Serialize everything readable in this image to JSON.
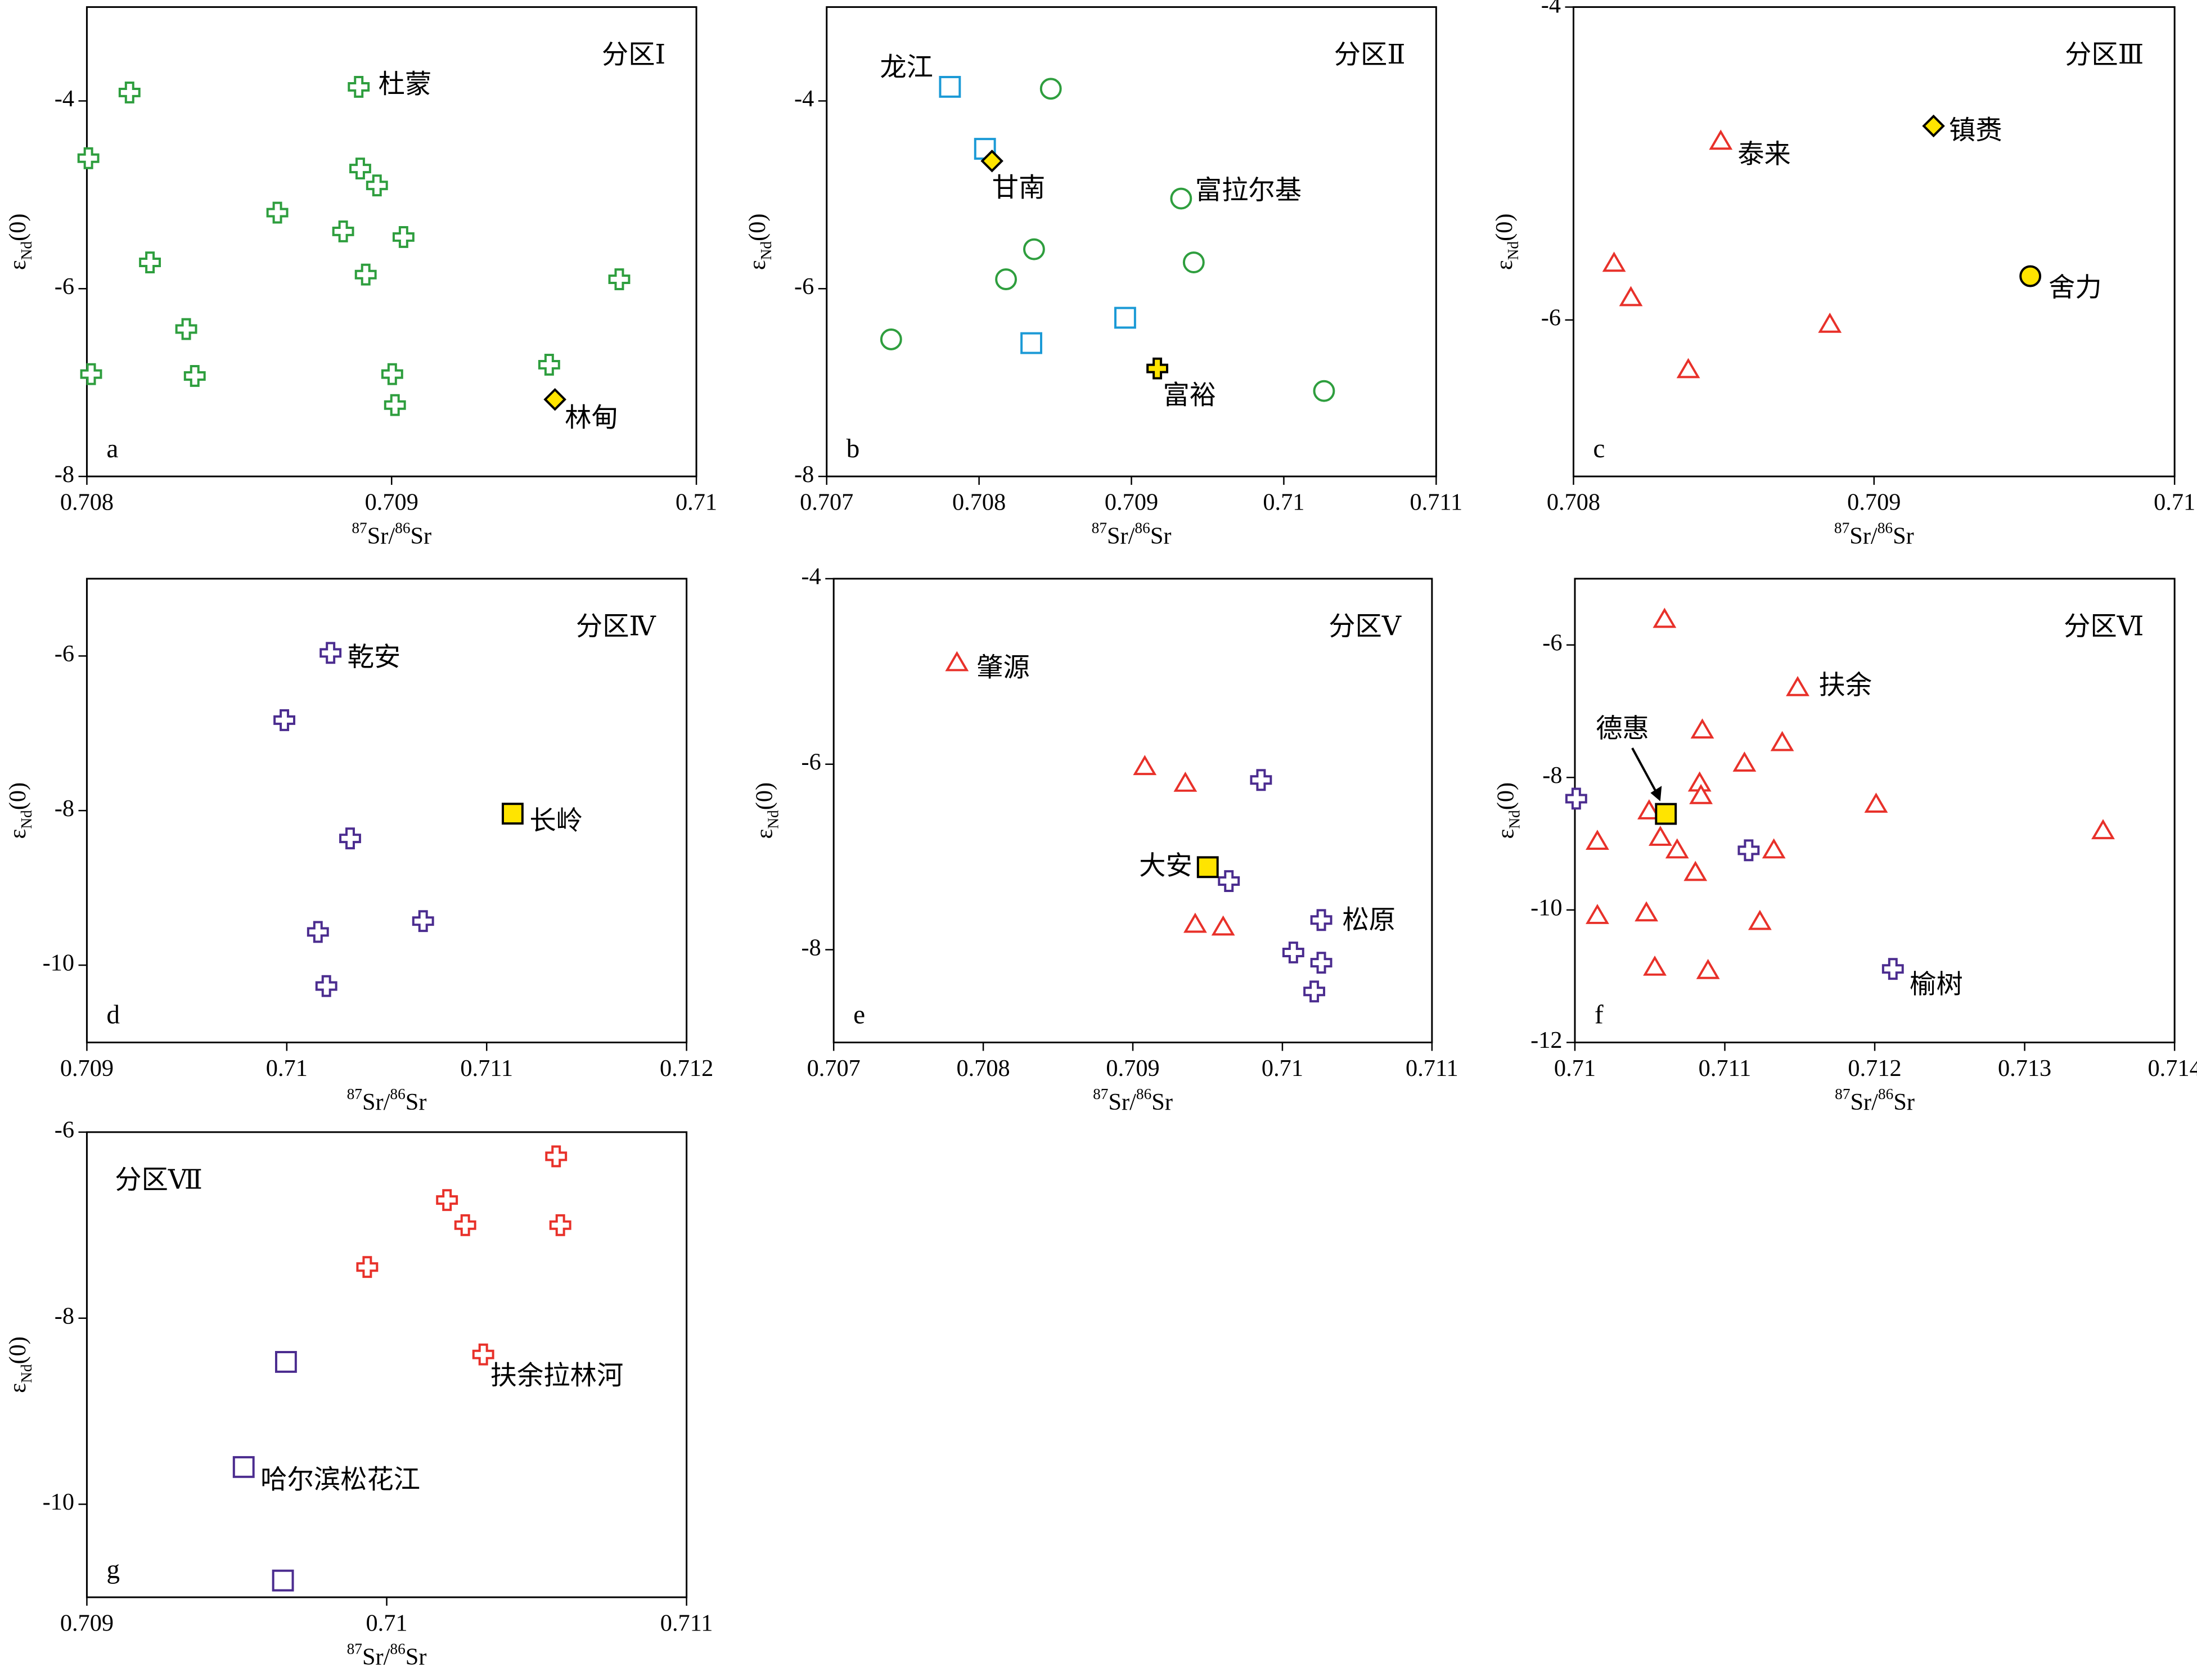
{
  "chart_data": [
    {
      "type": "scatter",
      "title": "分区Ⅰ",
      "panel_label": "a",
      "xlabel": [
        "87",
        "Sr/",
        "86",
        "Sr"
      ],
      "ylabel": [
        "ε",
        "Nd",
        "(0)"
      ],
      "xlim": [
        0.708,
        0.71
      ],
      "xticks": [
        0.708,
        0.709,
        0.71
      ],
      "ylim": [
        -8,
        -3
      ],
      "yticks": [
        -8,
        -6,
        -4
      ],
      "series": [
        {
          "marker": "cross",
          "color": "#2e9e3e",
          "fill": "#ffffff",
          "x": [
            0.70814,
            0.708005,
            0.708625,
            0.708207,
            0.708841,
            0.708897,
            0.708952,
            0.709039,
            0.708915,
            0.708326,
            0.708014,
            0.708354,
            0.709002,
            0.709011,
            0.709517,
            0.709747
          ],
          "y": [
            -3.91,
            -4.61,
            -5.19,
            -5.72,
            -5.39,
            -4.72,
            -4.9,
            -5.45,
            -5.85,
            -6.43,
            -6.91,
            -6.93,
            -6.91,
            -7.24,
            -6.81,
            -5.9
          ]
        },
        {
          "marker": "cross",
          "color": "#2e9e3e",
          "fill": "#ffffff",
          "label": "杜蒙",
          "x": [
            0.708892
          ],
          "y": [
            -3.85
          ]
        },
        {
          "marker": "diamond",
          "color": "#000000",
          "fill": "#ffe400",
          "label": "林甸",
          "x": [
            0.709536
          ],
          "y": [
            -7.18
          ]
        }
      ]
    },
    {
      "type": "scatter",
      "title": "分区Ⅱ",
      "panel_label": "b",
      "xlabel": [
        "87",
        "Sr/",
        "86",
        "Sr"
      ],
      "ylabel": [
        "ε",
        "Nd",
        "(0)"
      ],
      "xlim": [
        0.707,
        0.711
      ],
      "xticks": [
        0.707,
        0.708,
        0.709,
        0.71,
        0.711
      ],
      "ylim": [
        -8,
        -3
      ],
      "yticks": [
        -8,
        -6,
        -4
      ],
      "series": [
        {
          "marker": "square",
          "color": "#1b9ad6",
          "fill": "#ffffff",
          "x": [
            0.708039,
            0.708343,
            0.708959
          ],
          "y": [
            -4.51,
            -6.58,
            -6.31
          ]
        },
        {
          "marker": "square",
          "color": "#1b9ad6",
          "fill": "#ffffff",
          "label": "龙江",
          "x": [
            0.707809
          ],
          "y": [
            -3.85
          ]
        },
        {
          "marker": "circle",
          "color": "#2e9e3e",
          "fill": "#ffffff",
          "x": [
            0.708471,
            0.708361,
            0.708177,
            0.709409,
            0.707423,
            0.710264
          ],
          "y": [
            -3.87,
            -5.58,
            -5.9,
            -5.72,
            -6.54,
            -7.09
          ]
        },
        {
          "marker": "circle",
          "color": "#2e9e3e",
          "fill": "#ffffff",
          "label": "富拉尔基",
          "x": [
            0.709326
          ],
          "y": [
            -5.04
          ]
        },
        {
          "marker": "diamond",
          "color": "#000000",
          "fill": "#ffe400",
          "label": "甘南",
          "x": [
            0.708085
          ],
          "y": [
            -4.64
          ]
        },
        {
          "marker": "cross",
          "color": "#000000",
          "fill": "#ffe400",
          "label": "富裕",
          "x": [
            0.70917
          ],
          "y": [
            -6.85
          ]
        }
      ]
    },
    {
      "type": "scatter",
      "title": "分区Ⅲ",
      "panel_label": "c",
      "xlabel": [
        "87",
        "Sr/",
        "86",
        "Sr"
      ],
      "ylabel": [
        "ε",
        "Nd",
        "(0)"
      ],
      "xlim": [
        0.708,
        0.71
      ],
      "xticks": [
        0.708,
        0.709,
        0.71
      ],
      "ylim": [
        -7,
        -4
      ],
      "yticks": [
        -6,
        -4
      ],
      "series": [
        {
          "marker": "triangle",
          "color": "#e8312a",
          "fill": "#ffffff",
          "x": [
            0.708135,
            0.708191,
            0.708382,
            0.708853
          ],
          "y": [
            -5.64,
            -5.86,
            -6.32,
            -6.03
          ]
        },
        {
          "marker": "triangle",
          "color": "#e8312a",
          "fill": "#ffffff",
          "label": "泰来",
          "x": [
            0.70849
          ],
          "y": [
            -4.86
          ]
        },
        {
          "marker": "diamond",
          "color": "#000000",
          "fill": "#ffe400",
          "label": "镇赉",
          "x": [
            0.709198
          ],
          "y": [
            -4.76
          ]
        },
        {
          "marker": "circle",
          "color": "#000000",
          "fill": "#ffe400",
          "label": "舍力",
          "x": [
            0.70952
          ],
          "y": [
            -5.72
          ]
        }
      ]
    },
    {
      "type": "scatter",
      "title": "分区Ⅳ",
      "panel_label": "d",
      "xlabel": [
        "87",
        "Sr/",
        "86",
        "Sr"
      ],
      "ylabel": [
        "ε",
        "Nd",
        "(0)"
      ],
      "xlim": [
        0.709,
        0.712
      ],
      "xticks": [
        0.709,
        0.71,
        0.711,
        0.712
      ],
      "ylim": [
        -11,
        -5
      ],
      "yticks": [
        -10,
        -8,
        -6
      ],
      "series": [
        {
          "marker": "cross",
          "color": "#4b2c8f",
          "fill": "#ffffff",
          "x": [
            0.709988,
            0.710317,
            0.710156,
            0.710682,
            0.710198
          ],
          "y": [
            -6.83,
            -8.36,
            -9.57,
            -9.43,
            -10.27
          ]
        },
        {
          "marker": "cross",
          "color": "#4b2c8f",
          "fill": "#ffffff",
          "label": "乾安",
          "x": [
            0.710219
          ],
          "y": [
            -5.96
          ]
        },
        {
          "marker": "square",
          "color": "#000000",
          "fill": "#ffe400",
          "label": "长岭",
          "x": [
            0.71113
          ],
          "y": [
            -8.04
          ]
        }
      ]
    },
    {
      "type": "scatter",
      "title": "分区Ⅴ",
      "panel_label": "e",
      "xlabel": [
        "87",
        "Sr/",
        "86",
        "Sr"
      ],
      "ylabel": [
        "ε",
        "Nd",
        "(0)"
      ],
      "xlim": [
        0.707,
        0.711
      ],
      "xticks": [
        0.707,
        0.708,
        0.709,
        0.71,
        0.711
      ],
      "ylim": [
        -9,
        -4
      ],
      "yticks": [
        -8,
        -6,
        -4
      ],
      "series": [
        {
          "marker": "triangle",
          "color": "#e8312a",
          "fill": "#ffffff",
          "x": [
            0.70908,
            0.709351,
            0.709417,
            0.709604
          ],
          "y": [
            -6.03,
            -6.21,
            -7.73,
            -7.76
          ]
        },
        {
          "marker": "triangle",
          "color": "#e8312a",
          "fill": "#ffffff",
          "label": "肇源",
          "x": [
            0.707824
          ],
          "y": [
            -4.91
          ]
        },
        {
          "marker": "cross",
          "color": "#4b2c8f",
          "fill": "#ffffff",
          "x": [
            0.709857,
            0.709642,
            0.710073,
            0.71026,
            0.710213
          ],
          "y": [
            -6.17,
            -7.26,
            -8.03,
            -8.14,
            -8.45
          ]
        },
        {
          "marker": "cross",
          "color": "#4b2c8f",
          "fill": "#ffffff",
          "label": "松原",
          "x": [
            0.71026
          ],
          "y": [
            -7.68
          ]
        },
        {
          "marker": "square",
          "color": "#000000",
          "fill": "#ffe400",
          "label": "大安",
          "x": [
            0.709501
          ],
          "y": [
            -7.11
          ]
        }
      ]
    },
    {
      "type": "scatter",
      "title": "分区Ⅵ",
      "panel_label": "f",
      "xlabel": [
        "87",
        "Sr/",
        "86",
        "Sr"
      ],
      "ylabel": [
        "ε",
        "Nd",
        "(0)"
      ],
      "xlim": [
        0.71,
        0.714
      ],
      "xticks": [
        0.71,
        0.711,
        0.712,
        0.713,
        0.714
      ],
      "ylim": [
        -12,
        -5
      ],
      "yticks": [
        -12,
        -10,
        -8,
        -6
      ],
      "series": [
        {
          "marker": "triangle",
          "color": "#e8312a",
          "fill": "#ffffff",
          "x": [
            0.710598,
            0.71085,
            0.711383,
            0.711131,
            0.710832,
            0.710841,
            0.710495,
            0.712009,
            0.713523,
            0.71015,
            0.71057,
            0.710682,
            0.711327,
            0.710804,
            0.71015,
            0.710477,
            0.711234,
            0.710533,
            0.710888
          ],
          "y": [
            -5.62,
            -7.29,
            -7.48,
            -7.79,
            -8.09,
            -8.28,
            -8.51,
            -8.41,
            -8.81,
            -8.97,
            -8.91,
            -9.1,
            -9.1,
            -9.44,
            -10.09,
            -10.05,
            -10.18,
            -10.87,
            -10.92
          ]
        },
        {
          "marker": "triangle",
          "color": "#e8312a",
          "fill": "#ffffff",
          "label": "扶余",
          "x": [
            0.711486
          ],
          "y": [
            -6.65
          ]
        },
        {
          "marker": "cross",
          "color": "#4b2c8f",
          "fill": "#ffffff",
          "x": [
            0.710009,
            0.711159
          ],
          "y": [
            -8.32,
            -9.1
          ]
        },
        {
          "marker": "cross",
          "color": "#4b2c8f",
          "fill": "#ffffff",
          "label": "榆树",
          "x": [
            0.712121
          ],
          "y": [
            -10.89
          ]
        },
        {
          "marker": "square",
          "color": "#000000",
          "fill": "#ffe400",
          "label": "德惠",
          "x": [
            0.710607
          ],
          "y": [
            -8.55
          ]
        }
      ]
    },
    {
      "type": "scatter",
      "title": "分区Ⅶ",
      "panel_label": "g",
      "xlabel": [
        "87",
        "Sr/",
        "86",
        "Sr"
      ],
      "ylabel": [
        "ε",
        "Nd",
        "(0)"
      ],
      "xlim": [
        0.709,
        0.711
      ],
      "xticks": [
        0.709,
        0.71,
        0.711
      ],
      "ylim": [
        -11,
        -6
      ],
      "yticks": [
        -10,
        -8,
        -6
      ],
      "series": [
        {
          "marker": "cross",
          "color": "#e8312a",
          "fill": "#ffffff",
          "x": [
            0.710565,
            0.710201,
            0.710262,
            0.710579,
            0.709935
          ],
          "y": [
            -6.26,
            -6.73,
            -7.0,
            -7.0,
            -7.45
          ]
        },
        {
          "marker": "cross",
          "color": "#e8312a",
          "fill": "#ffffff",
          "label": "扶余拉林河",
          "x": [
            0.710322
          ],
          "y": [
            -8.39
          ]
        },
        {
          "marker": "square",
          "color": "#4b2c8f",
          "fill": "#ffffff",
          "x": [
            0.709664,
            0.709654
          ],
          "y": [
            -8.47,
            -10.82
          ]
        },
        {
          "marker": "square",
          "color": "#4b2c8f",
          "fill": "#ffffff",
          "label": "哈尔滨松花江",
          "x": [
            0.709523
          ],
          "y": [
            -9.6
          ]
        }
      ]
    }
  ]
}
